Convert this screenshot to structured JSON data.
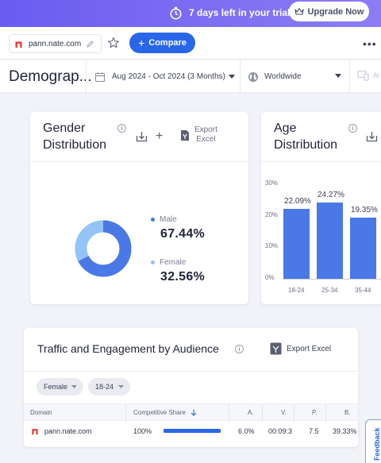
{
  "banner": {
    "trial_text": "7 days left in your trial",
    "upgrade_label": "Upgrade Now",
    "gradient_start": "#6a5cf0",
    "gradient_end": "#8c7df4"
  },
  "site_bar": {
    "domain": "pann.nate.com",
    "compare_label": "Compare",
    "accent_color": "#2a66e8",
    "favicon_color": "#e8352a",
    "more_icon": "more-dots-icon"
  },
  "filter_bar": {
    "page_title": "Demograp...",
    "date_range": "Aug 2024 - Oct 2024 (3 Months)",
    "region": "Worldwide",
    "more_label": "Al"
  },
  "gender_card": {
    "title_line1": "Gender",
    "title_line2": "Distribution",
    "export_line1": "Export",
    "export_line2": "Excel",
    "male_label": "Male",
    "male_value": "67.44%",
    "male_share": 67.44,
    "male_color": "#4a78e6",
    "female_label": "Female",
    "female_value": "32.56%",
    "female_share": 32.56,
    "female_color": "#93c4f5"
  },
  "age_card": {
    "title_line1": "Age",
    "title_line2": "Distribution"
  },
  "chart_data": {
    "type": "bar",
    "categories": [
      "18-24",
      "25-34",
      "35-44"
    ],
    "values": [
      22.09,
      24.27,
      19.35
    ],
    "value_labels": [
      "22.09%",
      "24.27%",
      "19.35%"
    ],
    "y_ticks": [
      "30%",
      "20%",
      "10%",
      "0%"
    ],
    "ylim": [
      0,
      30
    ],
    "bar_color": "#4a78e6",
    "grid": false
  },
  "traffic_card": {
    "title": "Traffic and Engagement by Audience",
    "export_label": "Export Excel",
    "filter_gender": "Female",
    "filter_age": "18-24",
    "columns": {
      "domain": "Domain",
      "competitive_share": "Competitive Share",
      "a": "A.",
      "v": "V.",
      "p": "P.",
      "b": "B."
    },
    "row": {
      "domain": "pann.nate.com",
      "share": "100%",
      "share_fraction": 1.0,
      "a": "6.0%",
      "v": "00:09:3",
      "p": "7.5",
      "b": "39.33%"
    }
  },
  "feedback": {
    "label": "Feedback"
  }
}
